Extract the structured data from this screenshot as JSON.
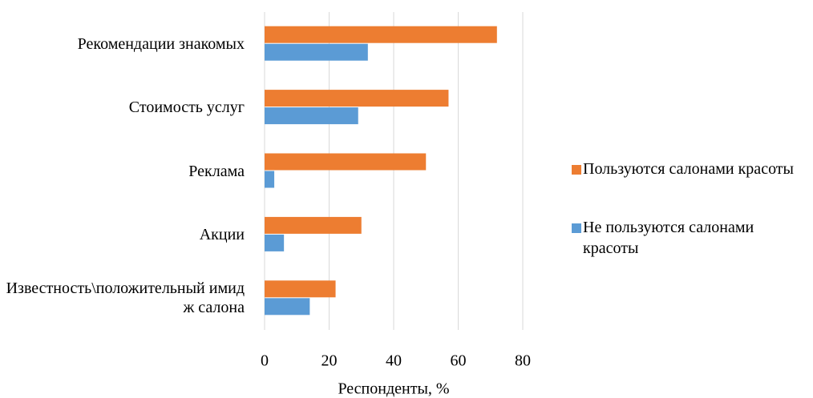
{
  "chart_data": {
    "type": "bar",
    "orientation": "horizontal",
    "categories": [
      "Рекомендации знакомых",
      "Стоимость услуг",
      "Реклама",
      "Акции",
      "Известность\\положительный имидж салона"
    ],
    "series": [
      {
        "name": "Пользуются салонами красоты",
        "color": "#ed7d31",
        "values": [
          72,
          57,
          50,
          30,
          22
        ]
      },
      {
        "name": "Не пользуются салонами красоты",
        "color": "#5b9bd5",
        "values": [
          32,
          29,
          3,
          6,
          14
        ]
      }
    ],
    "xlim": [
      0,
      80
    ],
    "xticks": [
      0,
      20,
      40,
      60,
      80
    ],
    "grid": true,
    "xlabel": "Респонденты, %",
    "legend": "right"
  }
}
